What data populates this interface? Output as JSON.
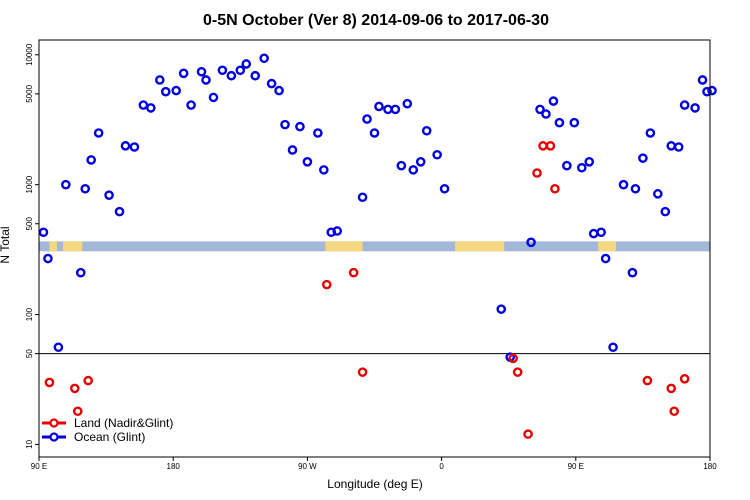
{
  "chart_data": {
    "type": "scatter",
    "title": "0-5N October (Ver 8)   2014-09-06 to 2017-06-30",
    "xlabel": "Longitude (deg E)",
    "ylabel": "N Total",
    "x_axis": {
      "domain": [
        90,
        540
      ],
      "ticks": [
        {
          "value": 90,
          "label": "90 E"
        },
        {
          "value": 180,
          "label": "180"
        },
        {
          "value": 270,
          "label": "90 W"
        },
        {
          "value": 360,
          "label": "0"
        },
        {
          "value": 450,
          "label": "90 E"
        },
        {
          "value": 540,
          "label": "180"
        }
      ]
    },
    "y_axis": {
      "scale": "log",
      "ylim": [
        8,
        13000
      ],
      "ticks": [
        {
          "value": 10,
          "label": "10"
        },
        {
          "value": 50,
          "label": "50"
        },
        {
          "value": 100,
          "label": "100"
        },
        {
          "value": 500,
          "label": "500"
        },
        {
          "value": 1000,
          "label": "1000"
        },
        {
          "value": 5000,
          "label": "5000"
        },
        {
          "value": 10000,
          "label": "10000"
        }
      ],
      "reference_line": 50
    },
    "land_sea_strip": {
      "y_value": 335,
      "ocean_color": "#a3b8d6",
      "land_color": "#f5d77f",
      "land_segments": [
        [
          97,
          102
        ],
        [
          106,
          119
        ],
        [
          282,
          307
        ],
        [
          369,
          402
        ],
        [
          465,
          477
        ]
      ]
    },
    "series": [
      {
        "name": "Land (Nadir&Glint)",
        "color": "#e60000",
        "points": [
          [
            97,
            30
          ],
          [
            114,
            27
          ],
          [
            123,
            31
          ],
          [
            116,
            18
          ],
          [
            283,
            170
          ],
          [
            301,
            210
          ],
          [
            307,
            36
          ],
          [
            408,
            46
          ],
          [
            411,
            36
          ],
          [
            418,
            12
          ],
          [
            424,
            1230
          ],
          [
            428,
            1990
          ],
          [
            433,
            1990
          ],
          [
            436,
            930
          ],
          [
            498,
            31
          ],
          [
            514,
            27
          ],
          [
            516,
            18
          ],
          [
            523,
            32
          ]
        ]
      },
      {
        "name": "Ocean (Glint)",
        "color": "#0000e0",
        "points": [
          [
            93,
            430
          ],
          [
            96,
            270
          ],
          [
            103,
            56
          ],
          [
            108,
            1000
          ],
          [
            118,
            210
          ],
          [
            121,
            930
          ],
          [
            125,
            1550
          ],
          [
            130,
            2500
          ],
          [
            137,
            830
          ],
          [
            144,
            620
          ],
          [
            148,
            1990
          ],
          [
            154,
            1950
          ],
          [
            160,
            4100
          ],
          [
            165,
            3900
          ],
          [
            171,
            6400
          ],
          [
            175,
            5200
          ],
          [
            182,
            5300
          ],
          [
            187,
            7200
          ],
          [
            192,
            4100
          ],
          [
            199,
            7400
          ],
          [
            202,
            6400
          ],
          [
            207,
            4700
          ],
          [
            213,
            7600
          ],
          [
            219,
            6900
          ],
          [
            225,
            7600
          ],
          [
            229,
            8500
          ],
          [
            235,
            6900
          ],
          [
            241,
            9400
          ],
          [
            246,
            6000
          ],
          [
            251,
            5300
          ],
          [
            255,
            2900
          ],
          [
            260,
            1850
          ],
          [
            265,
            2800
          ],
          [
            270,
            1500
          ],
          [
            277,
            2500
          ],
          [
            281,
            1300
          ],
          [
            286,
            430
          ],
          [
            290,
            440
          ],
          [
            307,
            800
          ],
          [
            310,
            3200
          ],
          [
            315,
            2500
          ],
          [
            318,
            4000
          ],
          [
            324,
            3800
          ],
          [
            329,
            3800
          ],
          [
            333,
            1400
          ],
          [
            337,
            4200
          ],
          [
            341,
            1300
          ],
          [
            346,
            1500
          ],
          [
            350,
            2600
          ],
          [
            357,
            1700
          ],
          [
            362,
            930
          ],
          [
            400,
            110
          ],
          [
            406,
            47
          ],
          [
            420,
            360
          ],
          [
            426,
            3800
          ],
          [
            430,
            3500
          ],
          [
            435,
            4400
          ],
          [
            439,
            3000
          ],
          [
            444,
            1400
          ],
          [
            449,
            3000
          ],
          [
            454,
            1350
          ],
          [
            459,
            1500
          ],
          [
            462,
            420
          ],
          [
            467,
            430
          ],
          [
            470,
            270
          ],
          [
            475,
            56
          ],
          [
            482,
            1000
          ],
          [
            488,
            210
          ],
          [
            490,
            930
          ],
          [
            495,
            1600
          ],
          [
            500,
            2500
          ],
          [
            505,
            850
          ],
          [
            510,
            620
          ],
          [
            514,
            1990
          ],
          [
            519,
            1950
          ],
          [
            523,
            4100
          ],
          [
            530,
            3900
          ],
          [
            535,
            6400
          ],
          [
            538,
            5200
          ],
          [
            542,
            5300
          ]
        ]
      }
    ]
  }
}
